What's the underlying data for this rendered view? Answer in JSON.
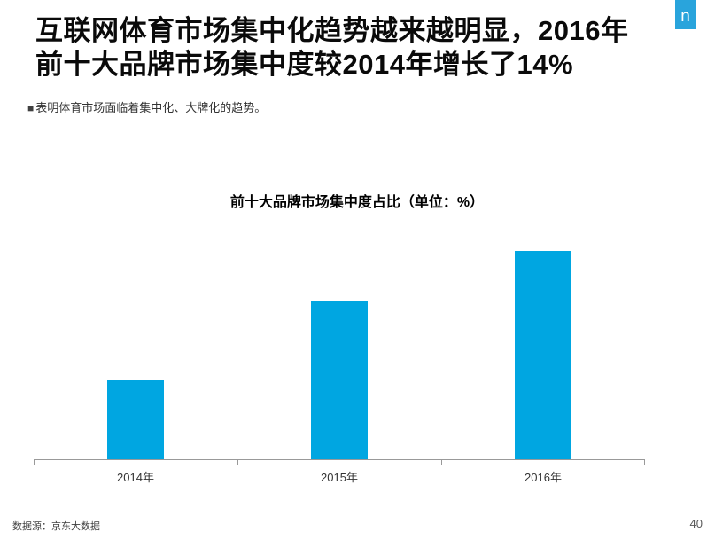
{
  "page": {
    "title_line1": "互联网体育市场集中化趋势越来越明显，2016年",
    "title_line2": "前十大品牌市场集中度较2014年增长了14%",
    "bullet_marker": "■",
    "bullet_text": "表明体育市场面临着集中化、大牌化的趋势。",
    "footer_source": "数据源：京东大数据",
    "page_number": "40",
    "logo_letter": "n"
  },
  "colors": {
    "bar": "#00A6E1",
    "logo_bg": "#29A4DC",
    "axis_line": "#999999",
    "title_text": "#0a0a0a",
    "body_text": "#333333"
  },
  "chart_data": {
    "type": "bar",
    "title": "前十大品牌市场集中度占比（单位：%）",
    "categories": [
      "2014年",
      "2015年",
      "2016年"
    ],
    "values": [
      8.5,
      17,
      22.5
    ],
    "xlabel": "",
    "ylabel": "",
    "ylim": [
      0,
      24
    ],
    "grid": false,
    "y_axis_visible": false,
    "data_labels_visible": false,
    "legend_position": "none",
    "bar_color": "#00A6E1"
  }
}
